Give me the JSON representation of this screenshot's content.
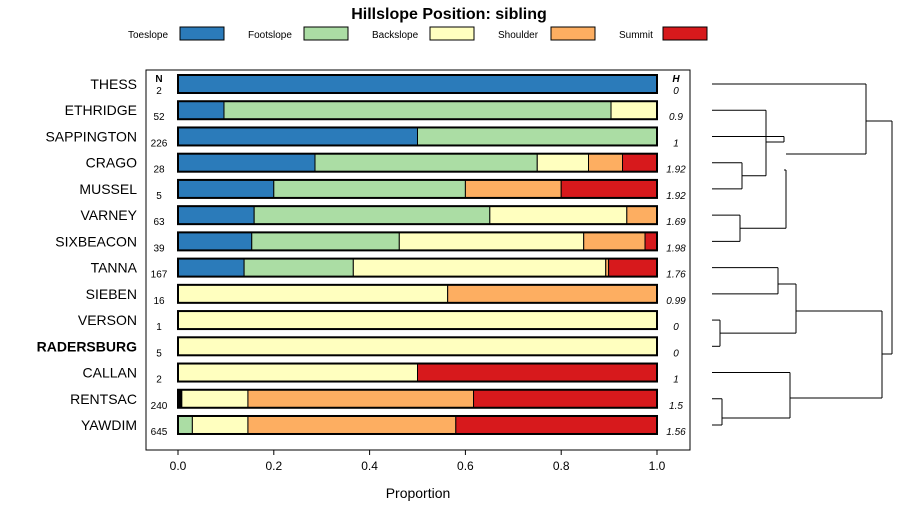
{
  "chart_data": {
    "type": "bar",
    "orientation": "horizontal",
    "stacked": true,
    "title": "Hillslope Position: sibling",
    "xlabel": "Proportion",
    "ylabel": "",
    "xlim": [
      0,
      1
    ],
    "xticks": [
      "0.0",
      "0.2",
      "0.4",
      "0.6",
      "0.8",
      "1.0"
    ],
    "n_header": "N",
    "h_header": "H",
    "legend_position": "top",
    "highlight_category": "RADERSBURG",
    "series": [
      {
        "name": "Toeslope",
        "color": "#2b7bba"
      },
      {
        "name": "Footslope",
        "color": "#abdda4"
      },
      {
        "name": "Backslope",
        "color": "#ffffbf"
      },
      {
        "name": "Shoulder",
        "color": "#fdae61"
      },
      {
        "name": "Summit",
        "color": "#d7191c"
      }
    ],
    "other_color": "#000000",
    "rows": [
      {
        "name": "THESS",
        "n": "2",
        "h": "0",
        "values": [
          1.0,
          0,
          0,
          0,
          0
        ]
      },
      {
        "name": "ETHRIDGE",
        "n": "52",
        "h": "0.9",
        "values": [
          0.096,
          0.808,
          0.096,
          0,
          0
        ]
      },
      {
        "name": "SAPPINGTON",
        "n": "226",
        "h": "1",
        "values": [
          0.5,
          0.5,
          0,
          0,
          0
        ]
      },
      {
        "name": "CRAGO",
        "n": "28",
        "h": "1.92",
        "values": [
          0.286,
          0.464,
          0.107,
          0.071,
          0.072
        ]
      },
      {
        "name": "MUSSEL",
        "n": "5",
        "h": "1.92",
        "values": [
          0.2,
          0.4,
          0,
          0.2,
          0.2
        ]
      },
      {
        "name": "VARNEY",
        "n": "63",
        "h": "1.69",
        "values": [
          0.159,
          0.492,
          0.286,
          0.063,
          0
        ]
      },
      {
        "name": "SIXBEACON",
        "n": "39",
        "h": "1.98",
        "values": [
          0.154,
          0.308,
          0.385,
          0.128,
          0.025
        ]
      },
      {
        "name": "TANNA",
        "n": "167",
        "h": "1.76",
        "values": [
          0.138,
          0.228,
          0.527,
          0.006,
          0.101
        ]
      },
      {
        "name": "SIEBEN",
        "n": "16",
        "h": "0.99",
        "values": [
          0,
          0,
          0.563,
          0.437,
          0
        ]
      },
      {
        "name": "VERSON",
        "n": "1",
        "h": "0",
        "values": [
          0,
          0,
          1.0,
          0,
          0
        ]
      },
      {
        "name": "RADERSBURG",
        "n": "5",
        "h": "0",
        "values": [
          0,
          0,
          1.0,
          0,
          0
        ]
      },
      {
        "name": "CALLAN",
        "n": "2",
        "h": "1",
        "values": [
          0,
          0,
          0.5,
          0,
          0.5
        ]
      },
      {
        "name": "RENTSAC",
        "n": "240",
        "h": "1.5",
        "other": 0.008,
        "values": [
          0,
          0,
          0.138,
          0.471,
          0.383
        ]
      },
      {
        "name": "YAWDIM",
        "n": "645",
        "h": "1.56",
        "values": [
          0,
          0.03,
          0.116,
          0.434,
          0.42
        ]
      }
    ]
  }
}
